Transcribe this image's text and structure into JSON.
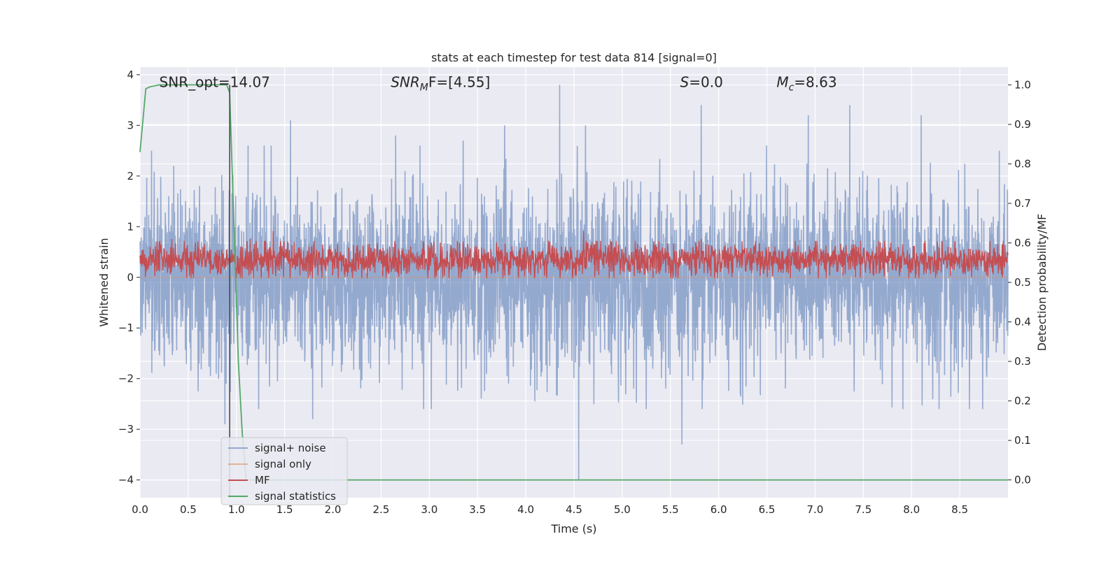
{
  "chart_data": {
    "type": "line",
    "title": "stats at each timestep for test data 814 [signal=0]",
    "xlabel": "Time (s)",
    "ylabel": "Whitened strain",
    "y2label": "Detection probability/MF",
    "xlim": [
      0.0,
      9.0
    ],
    "ylim": [
      -4.35,
      4.15
    ],
    "y2lim": [
      -0.045,
      1.045
    ],
    "x_ticks": [
      0.0,
      0.5,
      1.0,
      1.5,
      2.0,
      2.5,
      3.0,
      3.5,
      4.0,
      4.5,
      5.0,
      5.5,
      6.0,
      6.5,
      7.0,
      7.5,
      8.0,
      8.5
    ],
    "x_tick_labels": [
      "0.0",
      "0.5",
      "1.0",
      "1.5",
      "2.0",
      "2.5",
      "3.0",
      "3.5",
      "4.0",
      "4.5",
      "5.0",
      "5.5",
      "6.0",
      "6.5",
      "7.0",
      "7.5",
      "8.0",
      "8.5"
    ],
    "y_ticks": [
      4,
      3,
      2,
      1,
      0,
      -1,
      -2,
      -3,
      -4
    ],
    "y_tick_labels": [
      "4",
      "3",
      "2",
      "1",
      "0",
      "−1",
      "−2",
      "−3",
      "−4"
    ],
    "y2_ticks": [
      1.0,
      0.9,
      0.8,
      0.7,
      0.6,
      0.5,
      0.4,
      0.3,
      0.2,
      0.1,
      0.0
    ],
    "y2_tick_labels": [
      "1.0",
      "0.9",
      "0.8",
      "0.7",
      "0.6",
      "0.5",
      "0.4",
      "0.3",
      "0.2",
      "0.1",
      "0.0"
    ],
    "grid": true,
    "legend_placement": "lower-left",
    "series": [
      {
        "name": "signal+ noise",
        "axis": "left",
        "color": "#4c72b0",
        "opacity": 0.55,
        "description_values": "dense whitened noise, typical envelope about -1.6 to 1.8, peaks ~3.8 near t=4.35 and -4.0 near t=4.55",
        "approx_envelope": {
          "upper_typical": 1.8,
          "lower_typical": -1.6
        },
        "notable_peaks": [
          {
            "x": 0.12,
            "y": 2.5
          },
          {
            "x": 0.35,
            "y": 2.2
          },
          {
            "x": 0.88,
            "y": -2.9
          },
          {
            "x": 1.12,
            "y": 2.6
          },
          {
            "x": 1.23,
            "y": -2.6
          },
          {
            "x": 1.56,
            "y": 3.1
          },
          {
            "x": 1.79,
            "y": -2.8
          },
          {
            "x": 2.65,
            "y": 2.8
          },
          {
            "x": 3.02,
            "y": -2.6
          },
          {
            "x": 3.35,
            "y": 2.7
          },
          {
            "x": 3.78,
            "y": 3.0
          },
          {
            "x": 4.35,
            "y": 3.8
          },
          {
            "x": 4.55,
            "y": -4.0
          },
          {
            "x": 4.62,
            "y": 3.0
          },
          {
            "x": 5.25,
            "y": -2.6
          },
          {
            "x": 5.62,
            "y": -3.3
          },
          {
            "x": 5.82,
            "y": 3.4
          },
          {
            "x": 6.93,
            "y": 3.2
          },
          {
            "x": 7.36,
            "y": 3.4
          },
          {
            "x": 8.1,
            "y": 3.2
          },
          {
            "x": 8.6,
            "y": -2.6
          },
          {
            "x": 8.91,
            "y": 2.5
          }
        ]
      },
      {
        "name": "signal only",
        "axis": "left",
        "color": "#dd8452",
        "x": [
          0.0,
          9.0
        ],
        "y": [
          0.0,
          0.0
        ]
      },
      {
        "name": "MF",
        "axis": "right",
        "color": "#c44e52",
        "description_values": "matched-filter output oscillating about 0.53-0.58, peaks near 0.62",
        "approx_band": [
          0.515,
          0.6
        ],
        "notable_peaks": [
          {
            "x": 0.33,
            "y": 0.61
          },
          {
            "x": 1.14,
            "y": 0.61
          },
          {
            "x": 1.38,
            "y": 0.63
          },
          {
            "x": 2.46,
            "y": 0.6
          },
          {
            "x": 4.6,
            "y": 0.63
          },
          {
            "x": 5.82,
            "y": 0.61
          },
          {
            "x": 7.0,
            "y": 0.6
          },
          {
            "x": 8.13,
            "y": 0.6
          }
        ]
      },
      {
        "name": "signal statistics",
        "axis": "right",
        "color": "#55a868",
        "x": [
          0.0,
          0.06,
          0.1,
          0.2,
          0.5,
          0.9,
          0.93,
          0.98,
          1.02,
          1.06,
          1.1,
          1.5,
          9.0
        ],
        "y": [
          0.83,
          0.99,
          0.995,
          1.0,
          1.0,
          1.0,
          0.98,
          0.6,
          0.3,
          0.12,
          0.0,
          0.0,
          0.0
        ]
      }
    ],
    "vertical_line": {
      "x": 0.93,
      "color": "#4a4a4a"
    },
    "annotations": [
      {
        "text": "SNR_opt=14.07",
        "x": 0.2,
        "y": 3.85
      },
      {
        "text": "SNR_MF=[4.55]",
        "math": true,
        "base": "SNR",
        "sub": "M",
        "rest": "F=[4.55]",
        "x": 2.6,
        "y": 3.85
      },
      {
        "text": "S=0.0",
        "math": true,
        "base": "S",
        "sub": "",
        "rest": "=0.0",
        "x": 5.6,
        "y": 3.85
      },
      {
        "text": "M_c=8.63",
        "math": true,
        "base": "M",
        "sub": "c",
        "rest": "=8.63",
        "x": 6.6,
        "y": 3.85
      }
    ],
    "legend": [
      {
        "label": "signal+ noise",
        "color": "#4c72b0",
        "opacity": 0.55
      },
      {
        "label": "signal only",
        "color": "#dd8452",
        "opacity": 0.55
      },
      {
        "label": "MF",
        "color": "#c44e52",
        "opacity": 1
      },
      {
        "label": "signal statistics",
        "color": "#55a868",
        "opacity": 1
      }
    ],
    "colors": {
      "axes_bg": "#eaeaf2",
      "grid": "#ffffff",
      "text": "#262626"
    }
  }
}
